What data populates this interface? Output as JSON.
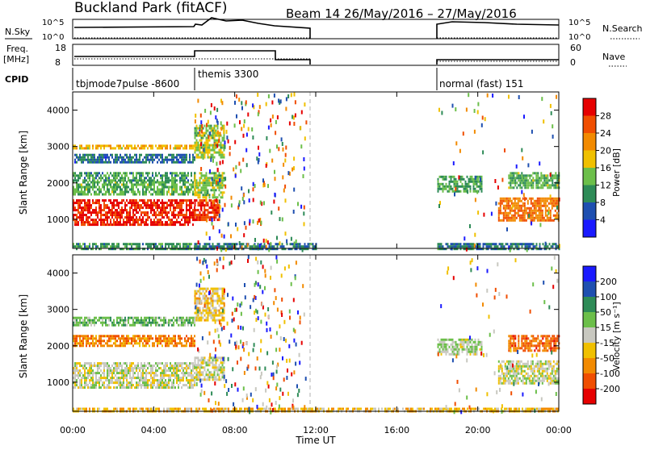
{
  "title": "Buckland Park (fitACF)",
  "beam_title": "Beam 14 26/May/2016 – 27/May/2016",
  "xlabel": "Time UT",
  "ylabel": "Slant Range [km]",
  "xticks": [
    "00:00",
    "04:00",
    "08:00",
    "12:00",
    "16:00",
    "20:00",
    "00:00"
  ],
  "yticks": [
    "1000",
    "2000",
    "3000",
    "4000"
  ],
  "top_panels": {
    "nsky_label": "N.Sky",
    "nsearch_label": "N.Search",
    "nsky_ticks": [
      "10^5",
      "10^0"
    ],
    "freq_label": "Freq.",
    "freq_unit": "[MHz]",
    "freq_ticks": [
      "18",
      "8"
    ],
    "nave_label": "Nave",
    "nave_ticks": [
      "60",
      "0"
    ],
    "cpid_label": "CPID",
    "cpid_entries": [
      "tbjmode7pulse -8600",
      "themis 3300",
      "normal (fast) 151"
    ]
  },
  "colors": {
    "power": [
      "#1a1aff",
      "#1e4fb0",
      "#2e8b57",
      "#6cbf4a",
      "#f0c000",
      "#f28a00",
      "#f04e00",
      "#e60000"
    ],
    "velocity": [
      "#e60000",
      "#f04e00",
      "#f28a00",
      "#f0c000",
      "#c8c8c0",
      "#6cbf4a",
      "#2e8b57",
      "#1e4fb0",
      "#1a1aff"
    ]
  },
  "power_colorbar": {
    "label": "Power [dB]",
    "ticks": [
      "4",
      "8",
      "12",
      "16",
      "20",
      "24",
      "28"
    ]
  },
  "velocity_colorbar": {
    "label": "Velocity [m s⁻¹]",
    "ticks": [
      "200",
      "100",
      "50",
      "15",
      "-15",
      "-50",
      "-100",
      "-200"
    ]
  },
  "chart_data": [
    {
      "type": "heatmap",
      "quantity": "power",
      "x_unit": "hours UT",
      "xlim": [
        0,
        24
      ],
      "ylim": [
        200,
        4500
      ],
      "value_range": [
        0,
        30
      ],
      "regions": [
        {
          "t": [
            0,
            6
          ],
          "r": [
            850,
            1550
          ],
          "v": 27
        },
        {
          "t": [
            0,
            6
          ],
          "r": [
            1700,
            2050
          ],
          "v": 12
        },
        {
          "t": [
            0,
            6
          ],
          "r": [
            2100,
            2300
          ],
          "v": 10
        },
        {
          "t": [
            0,
            6
          ],
          "r": [
            2550,
            2800
          ],
          "v": 7
        },
        {
          "t": [
            0,
            6
          ],
          "r": [
            2950,
            3050
          ],
          "v": 18
        },
        {
          "t": [
            0,
            6
          ],
          "r": [
            200,
            350
          ],
          "v": 10
        },
        {
          "t": [
            6,
            7.2
          ],
          "r": [
            1000,
            1550
          ],
          "v": 26
        },
        {
          "t": [
            6,
            7.5
          ],
          "r": [
            1600,
            2300
          ],
          "v": 14
        },
        {
          "t": [
            6,
            7.5
          ],
          "r": [
            2700,
            3600
          ],
          "v": 14
        },
        {
          "t": [
            6,
            12
          ],
          "r": [
            200,
            350
          ],
          "v": 8
        },
        {
          "t": [
            18,
            24
          ],
          "r": [
            200,
            350
          ],
          "v": 8
        },
        {
          "t": [
            18,
            20.2
          ],
          "r": [
            1800,
            2200
          ],
          "v": 11
        },
        {
          "t": [
            21,
            24
          ],
          "r": [
            1000,
            1600
          ],
          "v": 22
        },
        {
          "t": [
            21.5,
            24
          ],
          "r": [
            1900,
            2300
          ],
          "v": 12
        }
      ]
    },
    {
      "type": "heatmap",
      "quantity": "velocity",
      "x_unit": "hours UT",
      "xlim": [
        0,
        24
      ],
      "ylim": [
        200,
        4500
      ],
      "value_range": [
        -250,
        250
      ],
      "regions": [
        {
          "t": [
            0,
            6
          ],
          "r": [
            850,
            1550
          ],
          "v": 0
        },
        {
          "t": [
            0,
            6
          ],
          "r": [
            2000,
            2300
          ],
          "v": -120
        },
        {
          "t": [
            0,
            6
          ],
          "r": [
            2600,
            2800
          ],
          "v": 60
        },
        {
          "t": [
            6,
            7.5
          ],
          "r": [
            1100,
            1700
          ],
          "v": 0
        },
        {
          "t": [
            6,
            7.5
          ],
          "r": [
            2700,
            3600
          ],
          "v": -40
        },
        {
          "t": [
            18,
            20.2
          ],
          "r": [
            1800,
            2200
          ],
          "v": 20
        },
        {
          "t": [
            21,
            24
          ],
          "r": [
            950,
            1600
          ],
          "v": 0
        },
        {
          "t": [
            21.5,
            24
          ],
          "r": [
            1900,
            2300
          ],
          "v": -150
        },
        {
          "t": [
            0,
            24
          ],
          "r": [
            200,
            300
          ],
          "v": -60
        }
      ]
    }
  ]
}
